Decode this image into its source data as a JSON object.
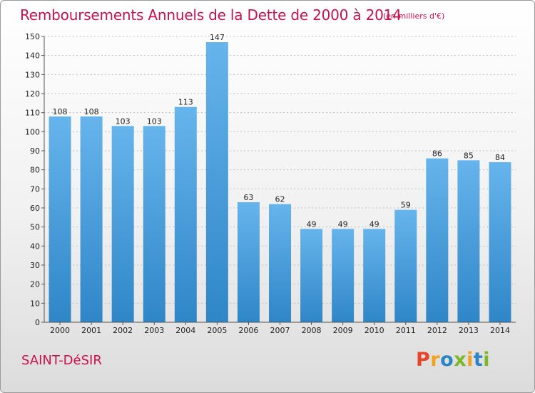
{
  "header": {
    "title": "Remboursements Annuels de la Dette de 2000 à 2014",
    "subtitle": "(en milliers d'€)"
  },
  "footer": {
    "commune": "SAINT-DéSIR",
    "logo": "Proxiti"
  },
  "colors": {
    "title": "#c8104f",
    "bar_light": "#66b4ec",
    "bar_dark": "#2f86c7",
    "grid": "#c0c0c0",
    "logo_letters": [
      "#e8462b",
      "#f2a21c",
      "#2a84c6",
      "#7ab82a",
      "#f2a21c",
      "#2a84c6",
      "#7ab82a"
    ]
  },
  "chart_data": {
    "type": "bar",
    "categories": [
      "2000",
      "2001",
      "2002",
      "2003",
      "2004",
      "2005",
      "2006",
      "2007",
      "2008",
      "2009",
      "2010",
      "2011",
      "2012",
      "2013",
      "2014"
    ],
    "values": [
      108,
      108,
      103,
      103,
      113,
      147,
      63,
      62,
      49,
      49,
      49,
      59,
      86,
      85,
      84
    ],
    "title": "Remboursements Annuels de la Dette de 2000 à 2014",
    "subtitle": "(en milliers d'€)",
    "ylim": [
      0,
      150
    ],
    "yticks": [
      0,
      10,
      20,
      30,
      40,
      50,
      60,
      70,
      80,
      90,
      100,
      110,
      120,
      130,
      140,
      150
    ],
    "grid": true,
    "data_labels": true
  }
}
